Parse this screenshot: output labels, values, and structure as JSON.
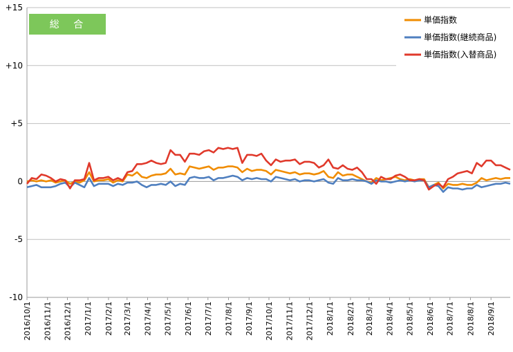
{
  "chart_data": {
    "type": "line",
    "title": "",
    "badge": "総 合",
    "badge_color": "#7dc75a",
    "ylim": [
      -10,
      15
    ],
    "yticks": [
      15,
      10,
      5,
      0,
      -5,
      -10
    ],
    "ytick_labels": [
      "+15",
      "+10",
      "+5",
      "0",
      "-5",
      "-10"
    ],
    "grid": "horizontal",
    "legend_position": "top-right",
    "x_range": [
      "2016/10/1",
      "2018/9/30"
    ],
    "xtick_labels": [
      "2016/10/1",
      "2016/11/1",
      "2016/12/1",
      "2017/1/1",
      "2017/2/1",
      "2017/3/1",
      "2017/4/1",
      "2017/5/1",
      "2017/6/1",
      "2017/7/1",
      "2017/8/1",
      "2017/9/1",
      "2017/10/1",
      "2017/11/1",
      "2017/12/1",
      "2018/1/1",
      "2018/2/1",
      "2018/3/1",
      "2018/4/1",
      "2018/5/1",
      "2018/6/1",
      "2018/7/1",
      "2018/8/1",
      "2018/9/1"
    ],
    "series": [
      {
        "name": "単価指数",
        "color": "#f08c00",
        "values": [
          0.0,
          0.1,
          0.0,
          0.1,
          0.0,
          0.1,
          -0.1,
          0.0,
          0.1,
          -0.2,
          0.0,
          -0.1,
          0.1,
          0.8,
          0.0,
          0.1,
          0.1,
          0.2,
          -0.1,
          0.1,
          0.0,
          0.6,
          0.5,
          0.8,
          0.4,
          0.3,
          0.5,
          0.6,
          0.6,
          0.7,
          1.1,
          0.6,
          0.7,
          0.6,
          1.3,
          1.2,
          1.1,
          1.2,
          1.3,
          1.0,
          1.2,
          1.2,
          1.3,
          1.3,
          1.2,
          0.8,
          1.1,
          0.9,
          1.0,
          1.0,
          0.9,
          0.6,
          1.0,
          0.9,
          0.8,
          0.7,
          0.8,
          0.6,
          0.7,
          0.7,
          0.6,
          0.7,
          0.9,
          0.4,
          0.3,
          0.8,
          0.5,
          0.6,
          0.6,
          0.4,
          0.2,
          0.0,
          -0.1,
          0.3,
          0.1,
          0.2,
          0.3,
          0.4,
          0.2,
          0.1,
          0.2,
          0.1,
          0.2,
          0.2,
          -0.5,
          -0.3,
          -0.1,
          -0.6,
          -0.2,
          -0.3,
          -0.3,
          -0.2,
          -0.3,
          -0.3,
          -0.1,
          0.3,
          0.1,
          0.2,
          0.3,
          0.2,
          0.3,
          0.3
        ]
      },
      {
        "name": "単価指数(継続商品)",
        "color": "#4f7fbf",
        "values": [
          -0.5,
          -0.4,
          -0.3,
          -0.5,
          -0.5,
          -0.5,
          -0.4,
          -0.2,
          -0.1,
          -0.5,
          -0.1,
          -0.3,
          -0.5,
          0.3,
          -0.4,
          -0.2,
          -0.2,
          -0.2,
          -0.4,
          -0.2,
          -0.3,
          -0.1,
          -0.1,
          0.0,
          -0.3,
          -0.5,
          -0.3,
          -0.3,
          -0.2,
          -0.3,
          0.0,
          -0.4,
          -0.2,
          -0.3,
          0.3,
          0.4,
          0.3,
          0.3,
          0.4,
          0.1,
          0.3,
          0.3,
          0.4,
          0.5,
          0.4,
          0.1,
          0.3,
          0.2,
          0.3,
          0.2,
          0.2,
          0.0,
          0.4,
          0.3,
          0.2,
          0.1,
          0.2,
          0.0,
          0.1,
          0.1,
          0.0,
          0.1,
          0.2,
          -0.1,
          -0.2,
          0.3,
          0.1,
          0.1,
          0.2,
          0.1,
          0.1,
          0.0,
          -0.2,
          0.1,
          0.0,
          0.0,
          -0.1,
          0.0,
          0.1,
          0.0,
          0.1,
          0.0,
          0.1,
          0.1,
          -0.5,
          -0.3,
          -0.4,
          -0.9,
          -0.5,
          -0.6,
          -0.6,
          -0.7,
          -0.6,
          -0.6,
          -0.3,
          -0.5,
          -0.4,
          -0.3,
          -0.2,
          -0.2,
          -0.1,
          -0.2
        ]
      },
      {
        "name": "単価指数(入替商品)",
        "color": "#e0392b",
        "values": [
          -0.2,
          0.3,
          0.2,
          0.6,
          0.5,
          0.3,
          0.0,
          0.2,
          0.1,
          -0.6,
          0.1,
          0.1,
          0.2,
          1.6,
          0.1,
          0.3,
          0.3,
          0.4,
          0.1,
          0.3,
          0.1,
          0.8,
          0.9,
          1.5,
          1.5,
          1.6,
          1.8,
          1.6,
          1.5,
          1.6,
          2.7,
          2.3,
          2.3,
          1.7,
          2.4,
          2.4,
          2.3,
          2.6,
          2.7,
          2.5,
          2.9,
          2.8,
          2.9,
          2.8,
          2.9,
          1.6,
          2.3,
          2.3,
          2.2,
          2.4,
          1.8,
          1.4,
          1.9,
          1.7,
          1.8,
          1.8,
          1.9,
          1.5,
          1.7,
          1.7,
          1.6,
          1.2,
          1.4,
          1.9,
          1.2,
          1.1,
          1.4,
          1.1,
          1.0,
          1.2,
          0.8,
          0.2,
          0.2,
          -0.2,
          0.4,
          0.2,
          0.2,
          0.5,
          0.6,
          0.4,
          0.1,
          0.1,
          0.2,
          0.1,
          -0.7,
          -0.4,
          -0.2,
          -0.5,
          0.2,
          0.4,
          0.7,
          0.8,
          0.9,
          0.7,
          1.6,
          1.3,
          1.8,
          1.8,
          1.4,
          1.4,
          1.2,
          1.0
        ]
      }
    ]
  }
}
